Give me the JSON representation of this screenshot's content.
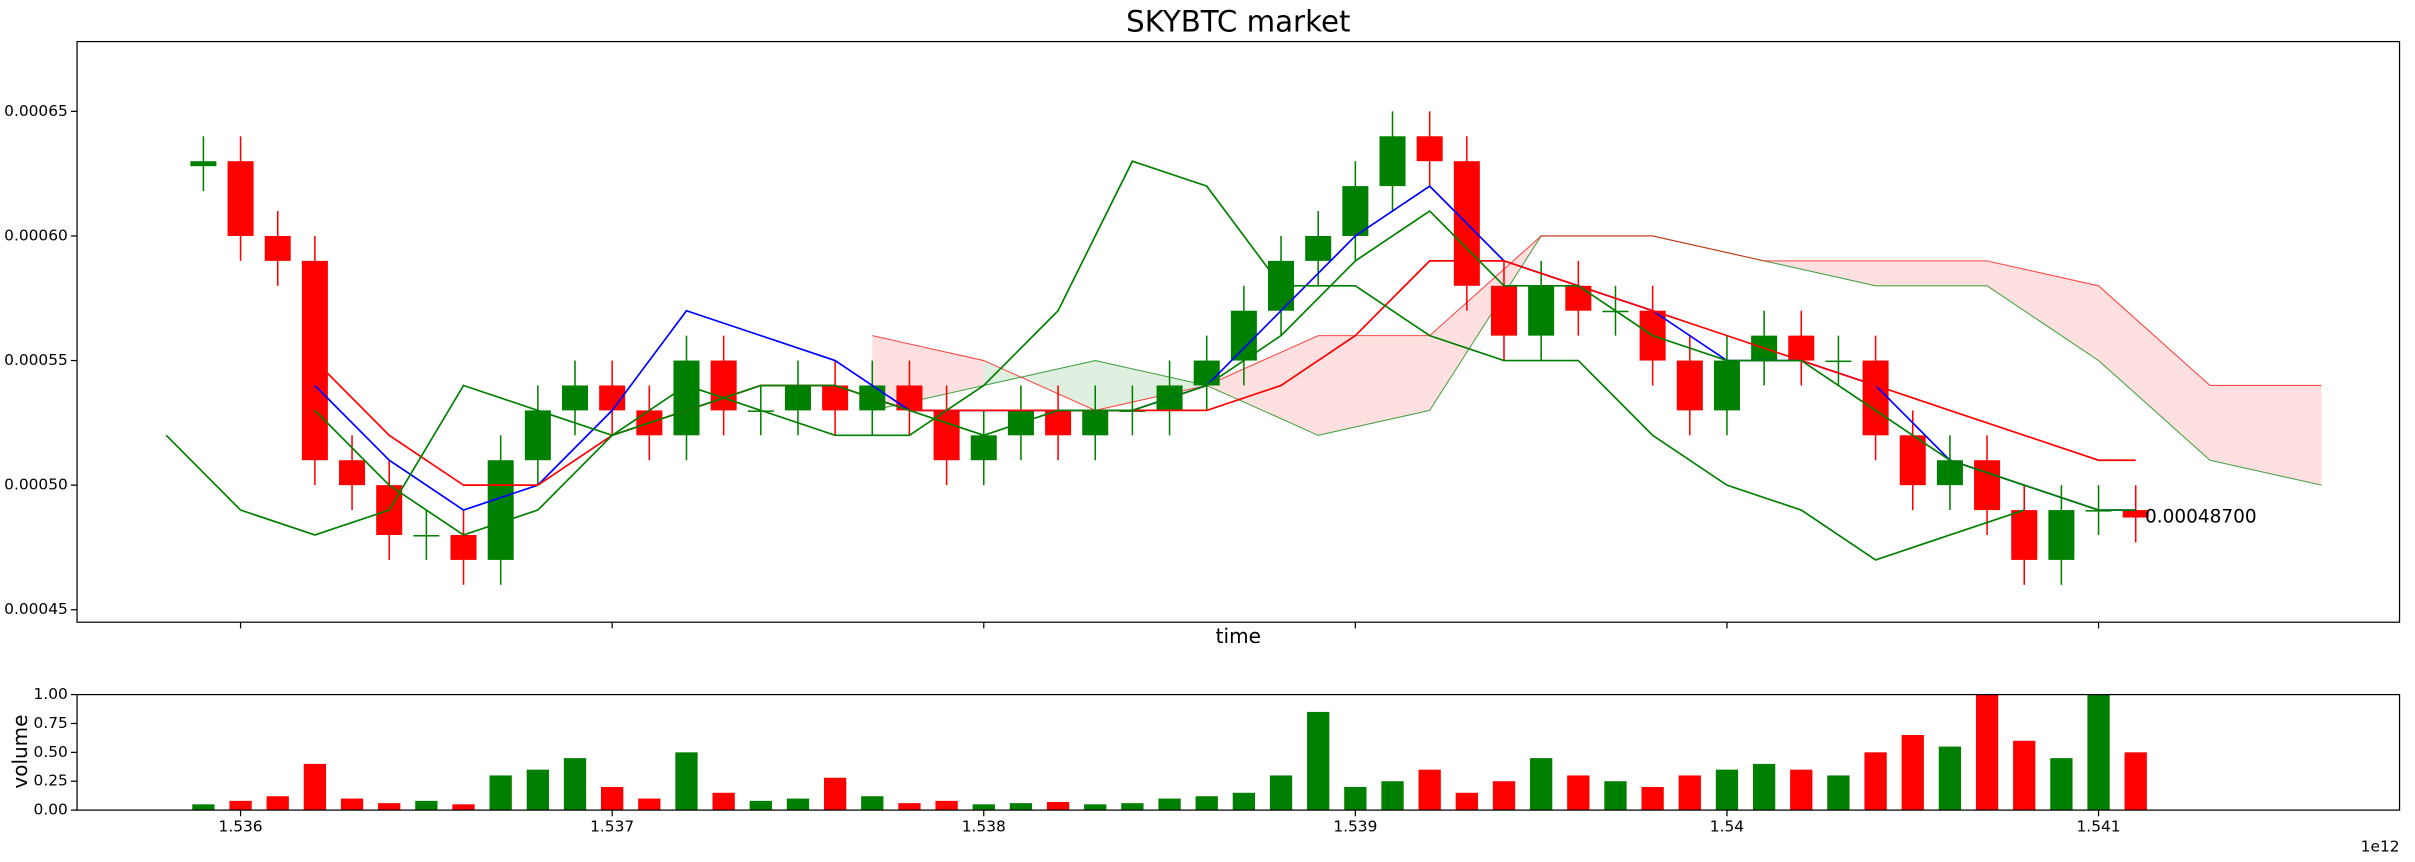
{
  "chart_data": [
    {
      "type": "candlestick",
      "title": "SKYBTC market",
      "xlabel": "time",
      "x": [
        1.5359,
        1.536,
        1.5361,
        1.5362,
        1.5363,
        1.5364,
        1.5365,
        1.5366,
        1.5367,
        1.5368,
        1.5369,
        1.537,
        1.5371,
        1.5372,
        1.5373,
        1.5374,
        1.5375,
        1.5376,
        1.5377,
        1.5378,
        1.5379,
        1.538,
        1.5381,
        1.5382,
        1.5383,
        1.5384,
        1.5385,
        1.5386,
        1.5387,
        1.5388,
        1.5389,
        1.539,
        1.5391,
        1.5392,
        1.5393,
        1.5394,
        1.5395,
        1.5396,
        1.5397,
        1.5398,
        1.5399,
        1.54,
        1.5401,
        1.5402,
        1.5403,
        1.5404,
        1.5405,
        1.5406,
        1.5407,
        1.5408,
        1.5409,
        1.541,
        1.5411
      ],
      "open": [
        0.000628,
        0.00063,
        0.0006,
        0.00059,
        0.00051,
        0.0005,
        0.00048,
        0.00048,
        0.00047,
        0.00051,
        0.00053,
        0.00054,
        0.00053,
        0.00052,
        0.00055,
        0.00053,
        0.00053,
        0.00054,
        0.00053,
        0.00054,
        0.00053,
        0.00051,
        0.00052,
        0.00053,
        0.00052,
        0.00053,
        0.00053,
        0.00054,
        0.00055,
        0.00057,
        0.00059,
        0.0006,
        0.00062,
        0.00064,
        0.00063,
        0.00058,
        0.00056,
        0.00058,
        0.00057,
        0.00057,
        0.00055,
        0.00053,
        0.00055,
        0.00056,
        0.00055,
        0.00055,
        0.00052,
        0.0005,
        0.00051,
        0.00049,
        0.00047,
        0.00049,
        0.00049
      ],
      "high": [
        0.00064,
        0.00064,
        0.00061,
        0.0006,
        0.00052,
        0.00051,
        0.00049,
        0.00049,
        0.00052,
        0.00054,
        0.00055,
        0.00055,
        0.00054,
        0.00056,
        0.00056,
        0.00054,
        0.00055,
        0.00055,
        0.00055,
        0.00055,
        0.00054,
        0.00053,
        0.00054,
        0.00054,
        0.00054,
        0.00054,
        0.00055,
        0.00056,
        0.00058,
        0.0006,
        0.00061,
        0.00063,
        0.00065,
        0.00065,
        0.00064,
        0.00059,
        0.00059,
        0.00059,
        0.00058,
        0.00058,
        0.00056,
        0.00056,
        0.00057,
        0.00057,
        0.00056,
        0.00056,
        0.00053,
        0.00052,
        0.00052,
        0.0005,
        0.0005,
        0.0005,
        0.0005
      ],
      "low": [
        0.000618,
        0.00059,
        0.00058,
        0.0005,
        0.00049,
        0.00047,
        0.00047,
        0.00046,
        0.00046,
        0.0005,
        0.00052,
        0.00052,
        0.00051,
        0.00051,
        0.00052,
        0.00052,
        0.00052,
        0.00052,
        0.00052,
        0.00052,
        0.0005,
        0.0005,
        0.00051,
        0.00051,
        0.00051,
        0.00052,
        0.00052,
        0.00053,
        0.00054,
        0.00056,
        0.00058,
        0.00059,
        0.00061,
        0.00062,
        0.00057,
        0.00055,
        0.00055,
        0.00056,
        0.00056,
        0.00054,
        0.00052,
        0.00052,
        0.00054,
        0.00054,
        0.00054,
        0.00051,
        0.00049,
        0.00049,
        0.00048,
        0.00046,
        0.00046,
        0.00048,
        0.000477
      ],
      "close": [
        0.00063,
        0.0006,
        0.00059,
        0.00051,
        0.0005,
        0.00048,
        0.00048,
        0.00047,
        0.00051,
        0.00053,
        0.00054,
        0.00053,
        0.00052,
        0.00055,
        0.00053,
        0.00053,
        0.00054,
        0.00053,
        0.00054,
        0.00053,
        0.00051,
        0.00052,
        0.00053,
        0.00052,
        0.00053,
        0.00053,
        0.00054,
        0.00055,
        0.00057,
        0.00059,
        0.0006,
        0.00062,
        0.00064,
        0.00063,
        0.00058,
        0.00056,
        0.00058,
        0.00057,
        0.00057,
        0.00055,
        0.00053,
        0.00055,
        0.00056,
        0.00055,
        0.00055,
        0.00052,
        0.0005,
        0.00051,
        0.00049,
        0.00047,
        0.00049,
        0.00049,
        0.000487
      ],
      "up_color": "#008000",
      "down_color": "#ff0000",
      "lines": [
        {
          "color": "#0000ff",
          "x": [
            1.5362,
            1.5364,
            1.5366,
            1.5368,
            1.537,
            1.5372,
            1.5374,
            1.5376,
            1.5378,
            1.538,
            1.5382,
            1.5384,
            1.5386,
            1.5388,
            1.539,
            1.5392,
            1.5394,
            1.5396,
            1.5398,
            1.54,
            1.5402,
            1.5404,
            1.5406,
            1.5408,
            1.541,
            1.5411
          ],
          "values": [
            0.00054,
            0.00051,
            0.00049,
            0.0005,
            0.00053,
            0.00057,
            0.00056,
            0.00055,
            0.00053,
            0.00053,
            0.00053,
            0.00053,
            0.00054,
            0.00057,
            0.0006,
            0.00062,
            0.00059,
            0.00058,
            0.00057,
            0.00055,
            0.00055,
            0.00054,
            0.00051,
            0.0005,
            0.00049,
            0.00049
          ]
        },
        {
          "color": "#ff0000",
          "x": [
            1.5362,
            1.5364,
            1.5366,
            1.5368,
            1.537,
            1.5372,
            1.5374,
            1.5376,
            1.5378,
            1.538,
            1.5382,
            1.5384,
            1.5386,
            1.5388,
            1.539,
            1.5392,
            1.5394,
            1.5396,
            1.5398,
            1.54,
            1.5402,
            1.5404,
            1.5406,
            1.5408,
            1.541,
            1.5411
          ],
          "values": [
            0.00055,
            0.00052,
            0.0005,
            0.0005,
            0.00052,
            0.00053,
            0.00054,
            0.00054,
            0.00053,
            0.00053,
            0.00053,
            0.00053,
            0.00053,
            0.00054,
            0.00056,
            0.00059,
            0.00059,
            0.00058,
            0.00057,
            0.00056,
            0.00055,
            0.00054,
            0.00053,
            0.00052,
            0.00051,
            0.00051
          ]
        },
        {
          "color": "#008000",
          "x": [
            1.5362,
            1.5364,
            1.5366,
            1.5368,
            1.537,
            1.5372,
            1.5374,
            1.5376,
            1.5378,
            1.538,
            1.5382,
            1.5384,
            1.5386,
            1.5388,
            1.539,
            1.5392,
            1.5394,
            1.5396,
            1.5398,
            1.54,
            1.5402,
            1.5404,
            1.5406,
            1.5408,
            1.541,
            1.5411
          ],
          "values": [
            0.00053,
            0.0005,
            0.00048,
            0.00049,
            0.00052,
            0.00053,
            0.00054,
            0.00054,
            0.00053,
            0.00052,
            0.00053,
            0.00053,
            0.00054,
            0.00056,
            0.00059,
            0.00061,
            0.00058,
            0.00058,
            0.00056,
            0.00055,
            0.00055,
            0.00053,
            0.00051,
            0.0005,
            0.00049,
            0.00049
          ]
        },
        {
          "color": "#008000",
          "x": [
            1.5358,
            1.536,
            1.5362,
            1.5364,
            1.5366,
            1.5368,
            1.537,
            1.5372,
            1.5374,
            1.5376,
            1.5378,
            1.538,
            1.5382,
            1.5384,
            1.5386,
            1.5388,
            1.539,
            1.5392,
            1.5394,
            1.5396,
            1.5398,
            1.54,
            1.5402,
            1.5404,
            1.5406,
            1.5408
          ],
          "values": [
            0.00052,
            0.00049,
            0.00048,
            0.00049,
            0.00054,
            0.00053,
            0.00052,
            0.00054,
            0.00053,
            0.00052,
            0.00052,
            0.00054,
            0.00057,
            0.00063,
            0.00062,
            0.00058,
            0.00058,
            0.00056,
            0.00055,
            0.00055,
            0.00052,
            0.0005,
            0.00049,
            0.00047,
            0.00048,
            0.00049
          ]
        }
      ],
      "cloud": {
        "x": [
          1.5377,
          1.538,
          1.5383,
          1.5386,
          1.5389,
          1.5392,
          1.5395,
          1.5398,
          1.5401,
          1.5404,
          1.5407,
          1.541,
          1.5413,
          1.5416
        ],
        "span_a": [
          0.00053,
          0.00054,
          0.00055,
          0.00054,
          0.00052,
          0.00053,
          0.0006,
          0.0006,
          0.00059,
          0.00058,
          0.00058,
          0.00055,
          0.00051,
          0.0005
        ],
        "span_b": [
          0.00056,
          0.00055,
          0.00053,
          0.00054,
          0.00056,
          0.00056,
          0.0006,
          0.0006,
          0.00059,
          0.00059,
          0.00059,
          0.00058,
          0.00054,
          0.00054
        ],
        "a_color": "#008000",
        "b_color": "#ff0000"
      },
      "last_price_label": "0.00048700",
      "xlim": [
        1.53556,
        1.54181
      ],
      "ylim": [
        0.000445,
        0.000678
      ],
      "xticks": [
        1.536,
        1.537,
        1.538,
        1.539,
        1.54,
        1.541
      ],
      "yticks": [
        0.00045,
        {
          "value": 0.0005,
          "label": "0.00050"
        },
        0.00055,
        {
          "value": 0.0006,
          "label": "0.00060"
        },
        0.00065
      ]
    },
    {
      "type": "bar",
      "ylabel": "volume",
      "x_offset_label": "1e12",
      "x": [
        1.5359,
        1.536,
        1.5361,
        1.5362,
        1.5363,
        1.5364,
        1.5365,
        1.5366,
        1.5367,
        1.5368,
        1.5369,
        1.537,
        1.5371,
        1.5372,
        1.5373,
        1.5374,
        1.5375,
        1.5376,
        1.5377,
        1.5378,
        1.5379,
        1.538,
        1.5381,
        1.5382,
        1.5383,
        1.5384,
        1.5385,
        1.5386,
        1.5387,
        1.5388,
        1.5389,
        1.539,
        1.5391,
        1.5392,
        1.5393,
        1.5394,
        1.5395,
        1.5396,
        1.5397,
        1.5398,
        1.5399,
        1.54,
        1.5401,
        1.5402,
        1.5403,
        1.5404,
        1.5405,
        1.5406,
        1.5407,
        1.5408,
        1.5409,
        1.541,
        1.5411
      ],
      "values": [
        0.05,
        0.08,
        0.12,
        0.4,
        0.1,
        0.06,
        0.08,
        0.05,
        0.3,
        0.35,
        0.45,
        0.2,
        0.1,
        0.5,
        0.15,
        0.08,
        0.1,
        0.28,
        0.12,
        0.06,
        0.08,
        0.05,
        0.06,
        0.07,
        0.05,
        0.06,
        0.1,
        0.12,
        0.15,
        0.3,
        0.85,
        0.2,
        0.25,
        0.35,
        0.15,
        0.25,
        0.45,
        0.3,
        0.25,
        0.2,
        0.3,
        0.35,
        0.4,
        0.35,
        0.3,
        0.5,
        0.65,
        0.55,
        1.0,
        0.6,
        0.45,
        1.0,
        0.5
      ],
      "xlim": [
        1.53556,
        1.54181
      ],
      "ylim": [
        0,
        1
      ],
      "xticks": [
        1.536,
        1.537,
        1.538,
        1.539,
        1.54,
        1.541
      ],
      "yticks": [
        {
          "value": 0,
          "label": "0.00"
        },
        {
          "value": 0.25,
          "label": "0.25"
        },
        {
          "value": 0.5,
          "label": "0.50"
        },
        {
          "value": 0.75,
          "label": "0.75"
        },
        {
          "value": 1,
          "label": "1.00"
        }
      ]
    }
  ]
}
